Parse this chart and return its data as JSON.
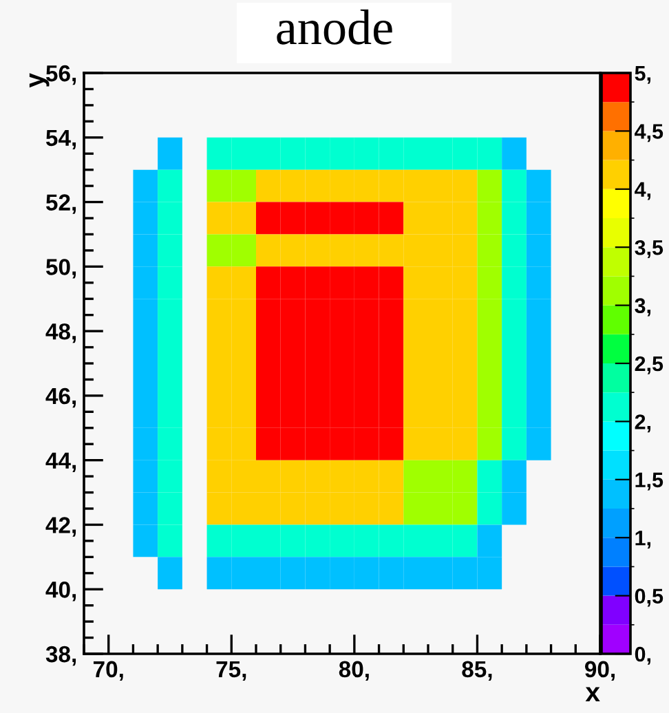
{
  "chart_data": {
    "type": "heatmap",
    "title": "anode",
    "xlabel": "x",
    "ylabel": "y",
    "xlim": [
      69,
      90
    ],
    "ylim": [
      38,
      56
    ],
    "y": [
      53.5,
      52.5,
      51.5,
      50.5,
      49.5,
      48.5,
      47.5,
      46.5,
      45.5,
      44.5,
      43.5,
      42.5,
      41.5,
      40.5
    ],
    "xticks": [
      {
        "value": 70,
        "label": "70,"
      },
      {
        "value": 75,
        "label": "75,"
      },
      {
        "value": 80,
        "label": "80,"
      },
      {
        "value": 85,
        "label": "85,"
      },
      {
        "value": 90,
        "label": "90,"
      }
    ],
    "yticks": [
      {
        "value": 38,
        "label": "38,"
      },
      {
        "value": 40,
        "label": "40,"
      },
      {
        "value": 42,
        "label": "42,"
      },
      {
        "value": 44,
        "label": "44,"
      },
      {
        "value": 46,
        "label": "46,"
      },
      {
        "value": 48,
        "label": "48,"
      },
      {
        "value": 50,
        "label": "50,"
      },
      {
        "value": 52,
        "label": "52,"
      },
      {
        "value": 54,
        "label": "54,"
      },
      {
        "value": 56,
        "label": "56,"
      }
    ],
    "clim": [
      0,
      5
    ],
    "cticks": [
      {
        "value": 0,
        "label": "0,"
      },
      {
        "value": 0.5,
        "label": "0,5"
      },
      {
        "value": 1,
        "label": "1,"
      },
      {
        "value": 1.5,
        "label": "1,5"
      },
      {
        "value": 2,
        "label": "2,"
      },
      {
        "value": 2.5,
        "label": "2,5"
      },
      {
        "value": 3,
        "label": "3,"
      },
      {
        "value": 3.5,
        "label": "3,5"
      },
      {
        "value": 4,
        "label": "4,"
      },
      {
        "value": 4.5,
        "label": "4,5"
      },
      {
        "value": 5,
        "label": "5,"
      }
    ],
    "cells": [
      [
        null,
        null,
        null,
        1.3,
        null,
        2.1,
        2.1,
        2.1,
        2.1,
        2.1,
        2.1,
        2.1,
        2.1,
        2.1,
        2.1,
        2.1,
        2.1,
        1.3,
        null,
        null,
        null
      ],
      [
        null,
        null,
        1.3,
        2.1,
        null,
        3.1,
        3.1,
        4.1,
        4.1,
        4.1,
        4.1,
        4.1,
        4.1,
        4.1,
        4.1,
        4.1,
        3.1,
        2.1,
        1.3,
        null,
        null
      ],
      [
        null,
        null,
        1.3,
        2.1,
        null,
        4.1,
        4.1,
        4.9,
        4.9,
        4.9,
        4.9,
        4.9,
        4.9,
        4.1,
        4.1,
        4.1,
        3.1,
        2.1,
        1.3,
        null,
        null
      ],
      [
        null,
        null,
        1.3,
        2.1,
        null,
        3.1,
        3.1,
        4.1,
        4.1,
        4.1,
        4.1,
        4.1,
        4.1,
        4.1,
        4.1,
        4.1,
        3.1,
        2.1,
        1.3,
        null,
        null
      ],
      [
        null,
        null,
        1.3,
        2.1,
        null,
        4.1,
        4.1,
        4.9,
        4.9,
        4.9,
        4.9,
        4.9,
        4.9,
        4.1,
        4.1,
        4.1,
        3.1,
        2.1,
        1.3,
        null,
        null
      ],
      [
        null,
        null,
        1.3,
        2.1,
        null,
        4.1,
        4.1,
        4.9,
        4.9,
        4.9,
        4.9,
        4.9,
        4.9,
        4.1,
        4.1,
        4.1,
        3.1,
        2.1,
        1.3,
        null,
        null
      ],
      [
        null,
        null,
        1.3,
        2.1,
        null,
        4.1,
        4.1,
        4.9,
        4.9,
        4.9,
        4.9,
        4.9,
        4.9,
        4.1,
        4.1,
        4.1,
        3.1,
        2.1,
        1.3,
        null,
        null
      ],
      [
        null,
        null,
        1.3,
        2.1,
        null,
        4.1,
        4.1,
        4.9,
        4.9,
        4.9,
        4.9,
        4.9,
        4.9,
        4.1,
        4.1,
        4.1,
        3.1,
        2.1,
        1.3,
        null,
        null
      ],
      [
        null,
        null,
        1.3,
        2.1,
        null,
        4.1,
        4.1,
        4.9,
        4.9,
        4.9,
        4.9,
        4.9,
        4.9,
        4.1,
        4.1,
        4.1,
        3.1,
        2.1,
        1.3,
        null,
        null
      ],
      [
        null,
        null,
        1.3,
        2.1,
        null,
        4.1,
        4.1,
        4.9,
        4.9,
        4.9,
        4.9,
        4.9,
        4.9,
        4.1,
        4.1,
        4.1,
        3.1,
        2.1,
        1.3,
        null,
        null
      ],
      [
        null,
        null,
        1.3,
        2.1,
        null,
        4.1,
        4.1,
        4.1,
        4.1,
        4.1,
        4.1,
        4.1,
        4.1,
        3.1,
        3.1,
        3.1,
        2.1,
        1.3,
        null,
        null,
        null
      ],
      [
        null,
        null,
        1.3,
        2.1,
        null,
        4.1,
        4.1,
        4.1,
        4.1,
        4.1,
        4.1,
        4.1,
        4.1,
        3.1,
        3.1,
        3.1,
        2.1,
        1.3,
        null,
        null,
        null
      ],
      [
        null,
        null,
        1.3,
        2.1,
        null,
        2.1,
        2.1,
        2.1,
        2.1,
        2.1,
        2.1,
        2.1,
        2.1,
        2.1,
        2.1,
        2.1,
        1.3,
        null,
        null,
        null,
        null
      ],
      [
        null,
        null,
        null,
        1.3,
        null,
        1.3,
        1.3,
        1.3,
        1.3,
        1.3,
        1.3,
        1.3,
        1.3,
        1.3,
        1.3,
        1.3,
        1.3,
        null,
        null,
        null,
        null
      ]
    ]
  }
}
